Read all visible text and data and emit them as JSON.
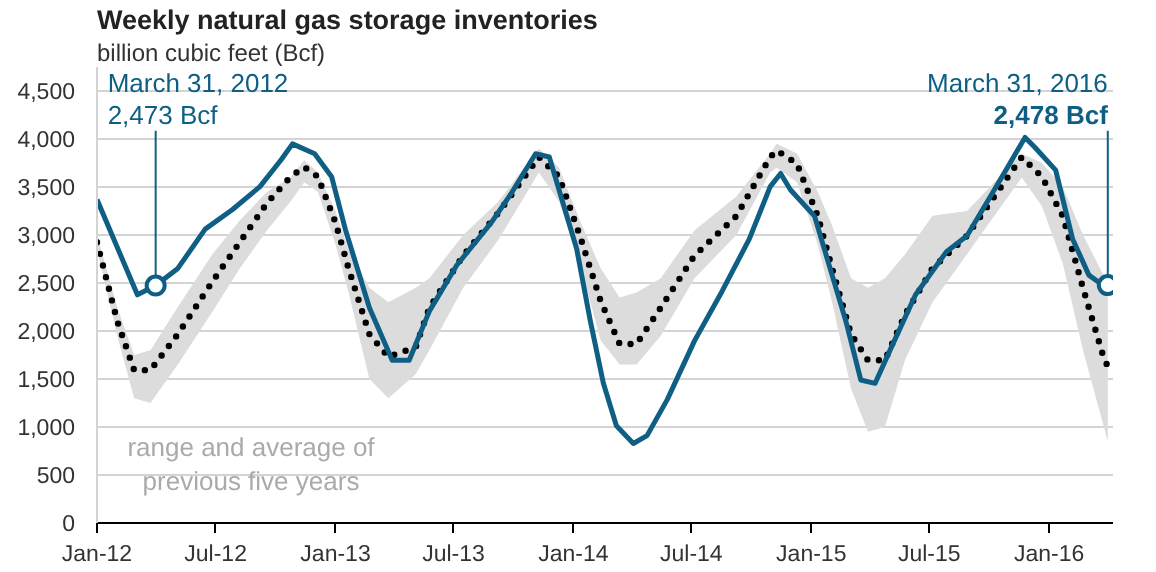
{
  "chart_data": {
    "type": "line",
    "title": "Weekly natural gas storage inventories",
    "subtitle": "billion cubic feet (Bcf)",
    "xlim": [
      "2012-01-01",
      "2016-04-08"
    ],
    "xticks": [
      {
        "value": "2012-01-01",
        "label": "Jan-12"
      },
      {
        "value": "2012-07-01",
        "label": "Jul-12"
      },
      {
        "value": "2013-01-01",
        "label": "Jan-13"
      },
      {
        "value": "2013-07-01",
        "label": "Jul-13"
      },
      {
        "value": "2014-01-01",
        "label": "Jan-14"
      },
      {
        "value": "2014-07-01",
        "label": "Jul-14"
      },
      {
        "value": "2015-01-01",
        "label": "Jan-15"
      },
      {
        "value": "2015-07-01",
        "label": "Jul-15"
      },
      {
        "value": "2016-01-01",
        "label": "Jan-16"
      }
    ],
    "ylim": [
      0,
      4750
    ],
    "yticks": [
      0,
      {
        "value": 500,
        "label": "500"
      },
      {
        "value": 1000,
        "label": "1,000"
      },
      {
        "value": 1500,
        "label": "1,500"
      },
      {
        "value": 2000,
        "label": "2,000"
      },
      {
        "value": 2500,
        "label": "2,500"
      },
      {
        "value": 3000,
        "label": "3,000"
      },
      {
        "value": 3500,
        "label": "3,500"
      },
      {
        "value": 4000,
        "label": "4,000"
      },
      {
        "value": 4500,
        "label": "4,500"
      }
    ],
    "grid": "y",
    "marker": "none",
    "series": [
      {
        "color": "#000000",
        "line_style": "dotted",
        "x": [
          "2012-01-01",
          "2012-02-01",
          "2012-02-27",
          "2012-03-23",
          "2012-05-04",
          "2012-06-26",
          "2012-08-07",
          "2012-09-18",
          "2012-10-24",
          "2012-11-14",
          "2012-12-05",
          "2013-01-01",
          "2013-01-21",
          "2013-02-22",
          "2013-03-23",
          "2013-05-04",
          "2013-05-25",
          "2013-07-16",
          "2013-09-08",
          "2013-11-09",
          "2013-12-10",
          "2014-01-11",
          "2014-02-12",
          "2014-03-13",
          "2014-04-08",
          "2014-05-15",
          "2014-07-06",
          "2014-09-08",
          "2014-10-30",
          "2014-11-09",
          "2014-12-10",
          "2015-01-11",
          "2015-02-02",
          "2015-03-03",
          "2015-03-29",
          "2015-04-24",
          "2015-05-25",
          "2015-07-06",
          "2015-08-28",
          "2015-10-09",
          "2015-11-20",
          "2015-12-21",
          "2016-01-22",
          "2016-02-22",
          "2016-03-23",
          "2016-03-31"
        ],
        "values": [
          2924,
          2105,
          1592,
          1592,
          1967,
          2514,
          2924,
          3334,
          3607,
          3709,
          3607,
          3129,
          2652,
          1967,
          1730,
          1832,
          2242,
          2787,
          3232,
          3812,
          3607,
          2992,
          2309,
          1865,
          1865,
          2242,
          2787,
          3197,
          3812,
          3881,
          3744,
          3197,
          2652,
          1967,
          1695,
          1695,
          2172,
          2652,
          2992,
          3402,
          3812,
          3607,
          3197,
          2447,
          1762,
          1627
        ],
        "upper": [
          3000,
          2250,
          1750,
          1800,
          2250,
          2800,
          3150,
          3450,
          3600,
          3780,
          3650,
          3250,
          2850,
          2450,
          2300,
          2450,
          2550,
          3000,
          3350,
          3900,
          3700,
          3150,
          2650,
          2350,
          2400,
          2550,
          3050,
          3400,
          3850,
          3950,
          3850,
          3450,
          3100,
          2550,
          2450,
          2550,
          2800,
          3200,
          3250,
          3550,
          3850,
          3750,
          3500,
          3000,
          2600,
          2500
        ],
        "lower": [
          2850,
          1950,
          1300,
          1250,
          1650,
          2200,
          2650,
          3050,
          3350,
          3550,
          3450,
          2900,
          2400,
          1500,
          1300,
          1550,
          1800,
          2450,
          2950,
          3650,
          3350,
          2700,
          1900,
          1650,
          1650,
          1950,
          2550,
          3000,
          3650,
          3700,
          3550,
          2900,
          2300,
          1400,
          950,
          1000,
          1700,
          2300,
          2800,
          3200,
          3600,
          3300,
          2700,
          1800,
          1050,
          850
        ]
      },
      {
        "color": "#0f5f85",
        "line_style": "solid",
        "x": [
          "2012-01-01",
          "2012-03-03",
          "2012-03-31",
          "2012-05-04",
          "2012-06-15",
          "2012-07-27",
          "2012-09-07",
          "2012-10-09",
          "2012-10-27",
          "2012-11-30",
          "2012-12-26",
          "2013-01-16",
          "2013-02-22",
          "2013-03-29",
          "2013-04-24",
          "2013-05-25",
          "2013-07-06",
          "2013-08-28",
          "2013-09-28",
          "2013-11-04",
          "2013-11-25",
          "2013-12-16",
          "2014-01-06",
          "2014-01-27",
          "2014-02-16",
          "2014-03-08",
          "2014-04-03",
          "2014-04-24",
          "2014-05-25",
          "2014-07-06",
          "2014-08-17",
          "2014-09-28",
          "2014-10-30",
          "2014-11-15",
          "2014-11-30",
          "2015-01-06",
          "2015-02-02",
          "2015-02-23",
          "2015-03-18",
          "2015-04-09",
          "2015-05-04",
          "2015-06-10",
          "2015-07-27",
          "2015-08-28",
          "2015-10-09",
          "2015-11-25",
          "2015-12-10",
          "2016-01-11",
          "2016-02-06",
          "2016-03-02",
          "2016-03-23",
          "2016-03-31"
        ],
        "values": [
          3369,
          2377,
          2473,
          2652,
          3061,
          3266,
          3504,
          3779,
          3949,
          3846,
          3607,
          3061,
          2242,
          1695,
          1695,
          2207,
          2685,
          3129,
          3437,
          3847,
          3812,
          3334,
          2857,
          2105,
          1455,
          1012,
          828,
          910,
          1285,
          1900,
          2412,
          2959,
          3504,
          3641,
          3471,
          3197,
          2582,
          2105,
          1490,
          1455,
          1832,
          2377,
          2822,
          2992,
          3471,
          4016,
          3914,
          3676,
          2959,
          2582,
          2480,
          2478
        ]
      }
    ],
    "annotations": [
      {
        "text": "March 31, 2012\n2,473 Bcf",
        "x": "2012-03-31",
        "y": 2473
      },
      {
        "text": "March 31, 2016\n2,478 Bcf",
        "x": "2016-03-31",
        "y": 2478
      },
      "range and average of\nprevious five years"
    ]
  }
}
